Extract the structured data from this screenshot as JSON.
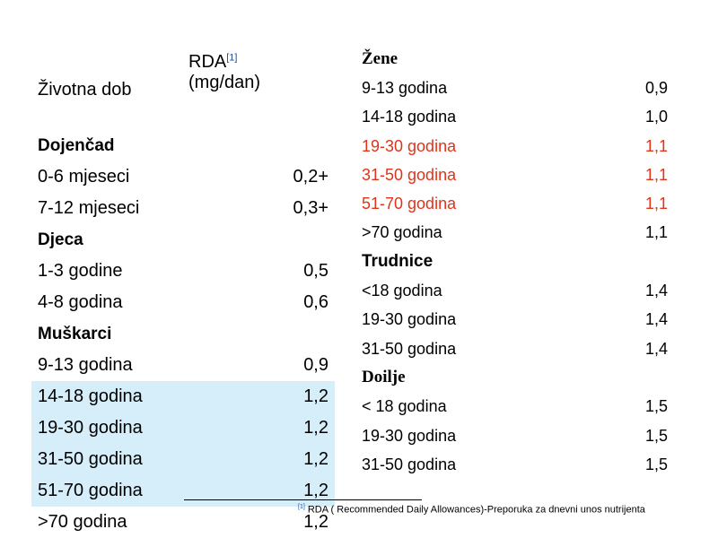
{
  "left_table": {
    "header": {
      "col1": "Životna dob",
      "col2_line1": "RDA",
      "col2_ref": "[1]",
      "col2_line2": "(mg/dan)"
    },
    "rows": [
      {
        "section": "Dojenčad"
      },
      {
        "label": "0-6 mjeseci",
        "value": "0,2+"
      },
      {
        "label": "7-12 mjeseci",
        "value": "0,3+"
      },
      {
        "section": "Djeca"
      },
      {
        "label": "1-3 godine",
        "value": "0,5"
      },
      {
        "label": "4-8 godina",
        "value": "0,6"
      },
      {
        "section": "Muškarci"
      },
      {
        "label": "9-13  godina",
        "value": "0,9"
      },
      {
        "label": "14-18 godina",
        "value": "1,2",
        "highlight": true
      },
      {
        "label": "19-30 godina",
        "value": "1,2",
        "highlight": true
      },
      {
        "label": "31-50 godina",
        "value": "1,2",
        "highlight": true
      },
      {
        "label": "51-70 godina",
        "value": "1,2",
        "highlight": true
      },
      {
        "label": ">70 godina",
        "value": "1,2"
      }
    ],
    "highlight_color": "#d6eefa"
  },
  "right_table": {
    "rows": [
      {
        "section": "Žene",
        "style": "serif"
      },
      {
        "label": "9-13 godina",
        "value": "0,9"
      },
      {
        "label": "14-18 godina",
        "value": "1,0"
      },
      {
        "label": "19-30 godina",
        "value": "1,1",
        "red": true
      },
      {
        "label": "31-50 godina",
        "value": "1,1",
        "red": true
      },
      {
        "label": "51-70 godina",
        "value": "1,1",
        "red": true
      },
      {
        "label": ">70 godina",
        "value": "1,1"
      },
      {
        "section": "Trudnice",
        "style": "sans"
      },
      {
        "label": "<18 godina",
        "value": "1,4"
      },
      {
        "label": "19-30 godina",
        "value": "1,4"
      },
      {
        "label": "31-50 godina",
        "value": "1,4"
      },
      {
        "section": "Doilje",
        "style": "serif"
      },
      {
        "label": "< 18 godina",
        "value": "1,5"
      },
      {
        "label": "19-30 godina",
        "value": "1,5"
      },
      {
        "label": "31-50 godina",
        "value": "1,5"
      }
    ],
    "red_color": "#e0341a"
  },
  "footnote": {
    "ref": "[1]",
    "text": "RDA ( Recommended Daily Allowances)-Preporuka za dnevni unos nutrijenta"
  }
}
